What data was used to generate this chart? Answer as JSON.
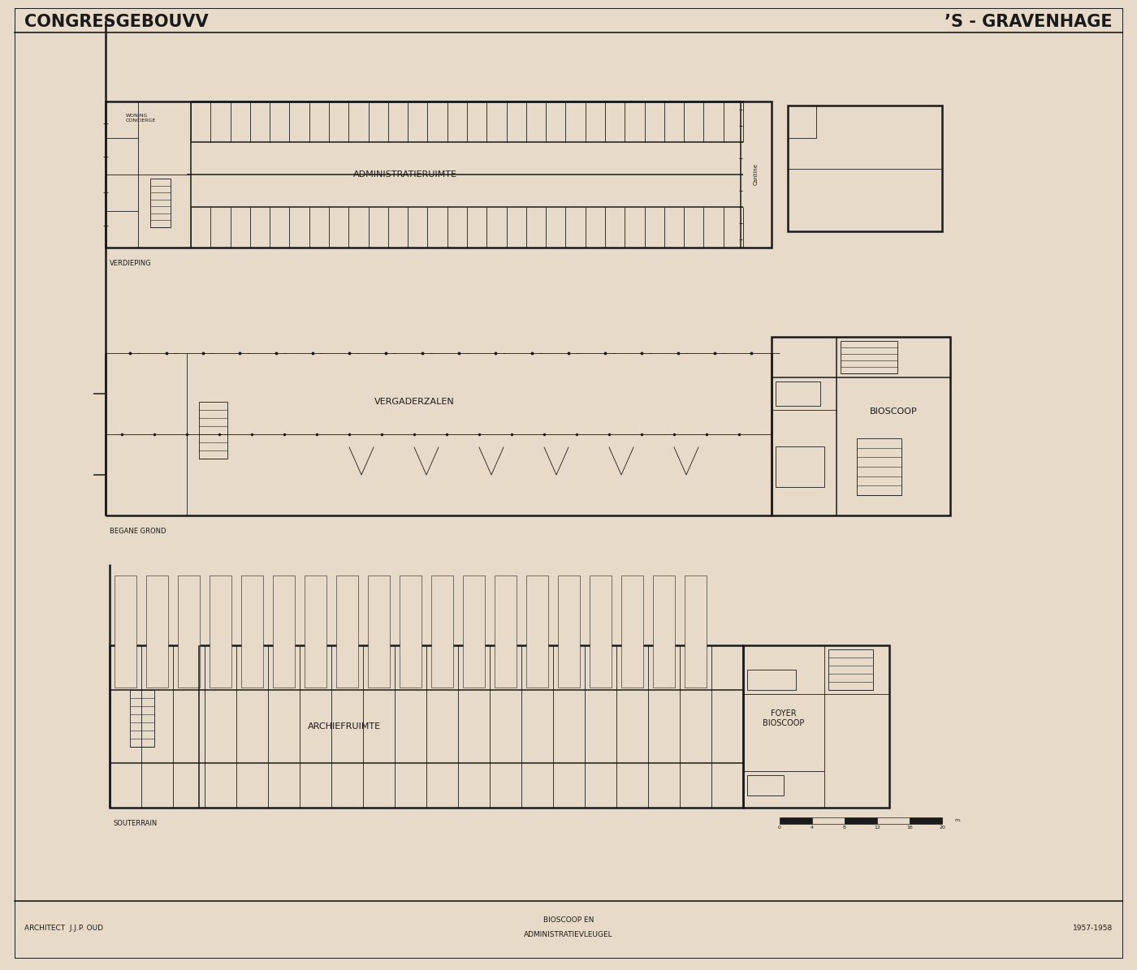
{
  "bg_color": "#e8dac8",
  "line_color": "#1a1a1a",
  "title_left": "CONGRESGEBOUVV",
  "title_right": "’S - GRAVENHAGE",
  "footer_left": "ARCHITECT  J.J.P. OUD",
  "footer_center_line1": "BIOSCOOP EN",
  "footer_center_line2": "ADMINISTRATIEVLEUGEL",
  "footer_right": "1957-1958",
  "plan_label_top": "VERDIEPING",
  "plan_label_mid": "BEGANE GROND",
  "plan_label_bot": "SOUTERRAIN"
}
